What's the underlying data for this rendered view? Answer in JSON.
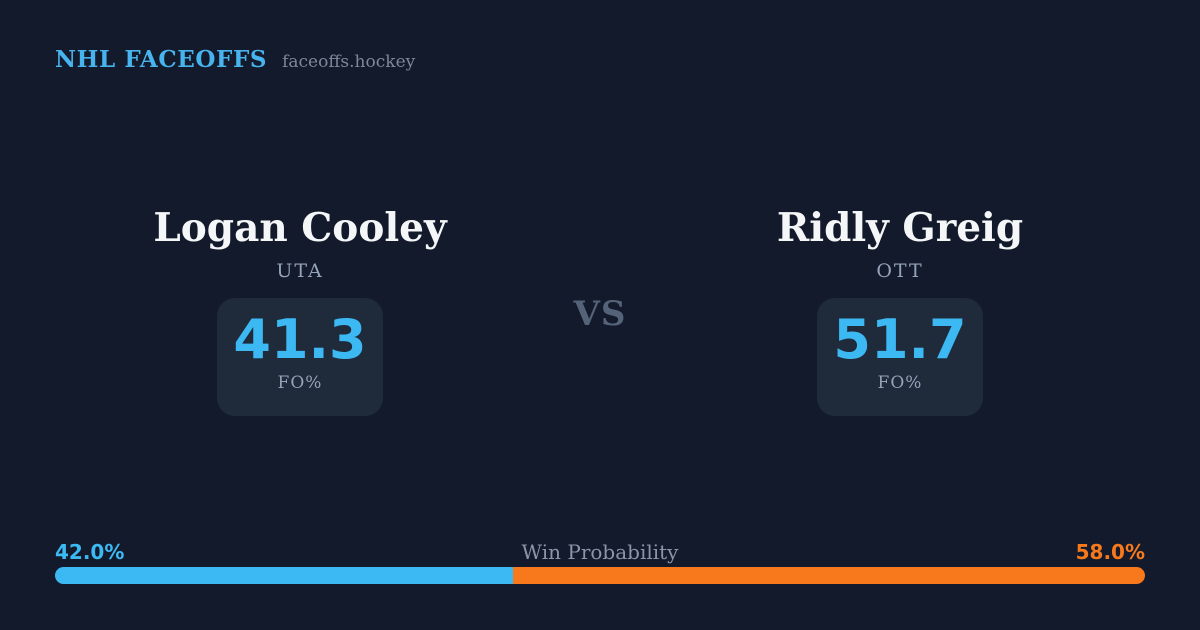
{
  "header": {
    "title": "NHL FACEOFFS",
    "site": "faceoffs.hockey"
  },
  "matchup": {
    "vs_label": "VS",
    "players": [
      {
        "name": "Logan Cooley",
        "team": "UTA",
        "stat_value": "41.3",
        "stat_label": "FO%"
      },
      {
        "name": "Ridly Greig",
        "team": "OTT",
        "stat_value": "51.7",
        "stat_label": "FO%"
      }
    ]
  },
  "win_probability": {
    "label": "Win Probability",
    "left_label": "42.0%",
    "right_label": "58.0%",
    "left_value": 42.0,
    "right_value": 58.0
  },
  "colors": {
    "background": "#121a2b",
    "card": "#1f2a3b",
    "accent_blue": "#3cb9f3",
    "accent_orange": "#f8791c",
    "text_primary": "#f4f6f8",
    "text_muted": "#94a3b8",
    "vs_muted": "#556378"
  },
  "chart_data": {
    "type": "bar",
    "subtype": "stacked-horizontal-single-bar",
    "title": "Win Probability",
    "series": [
      {
        "name": "Logan Cooley (UTA)",
        "value": 42.0,
        "color": "#3cb9f3"
      },
      {
        "name": "Ridly Greig (OTT)",
        "value": 58.0,
        "color": "#f8791c"
      }
    ],
    "xlim": [
      0,
      100
    ],
    "legend_position": "none",
    "related_stats": [
      {
        "player": "Logan Cooley",
        "team": "UTA",
        "metric": "FO%",
        "value": 41.3
      },
      {
        "player": "Ridly Greig",
        "team": "OTT",
        "metric": "FO%",
        "value": 51.7
      }
    ]
  }
}
